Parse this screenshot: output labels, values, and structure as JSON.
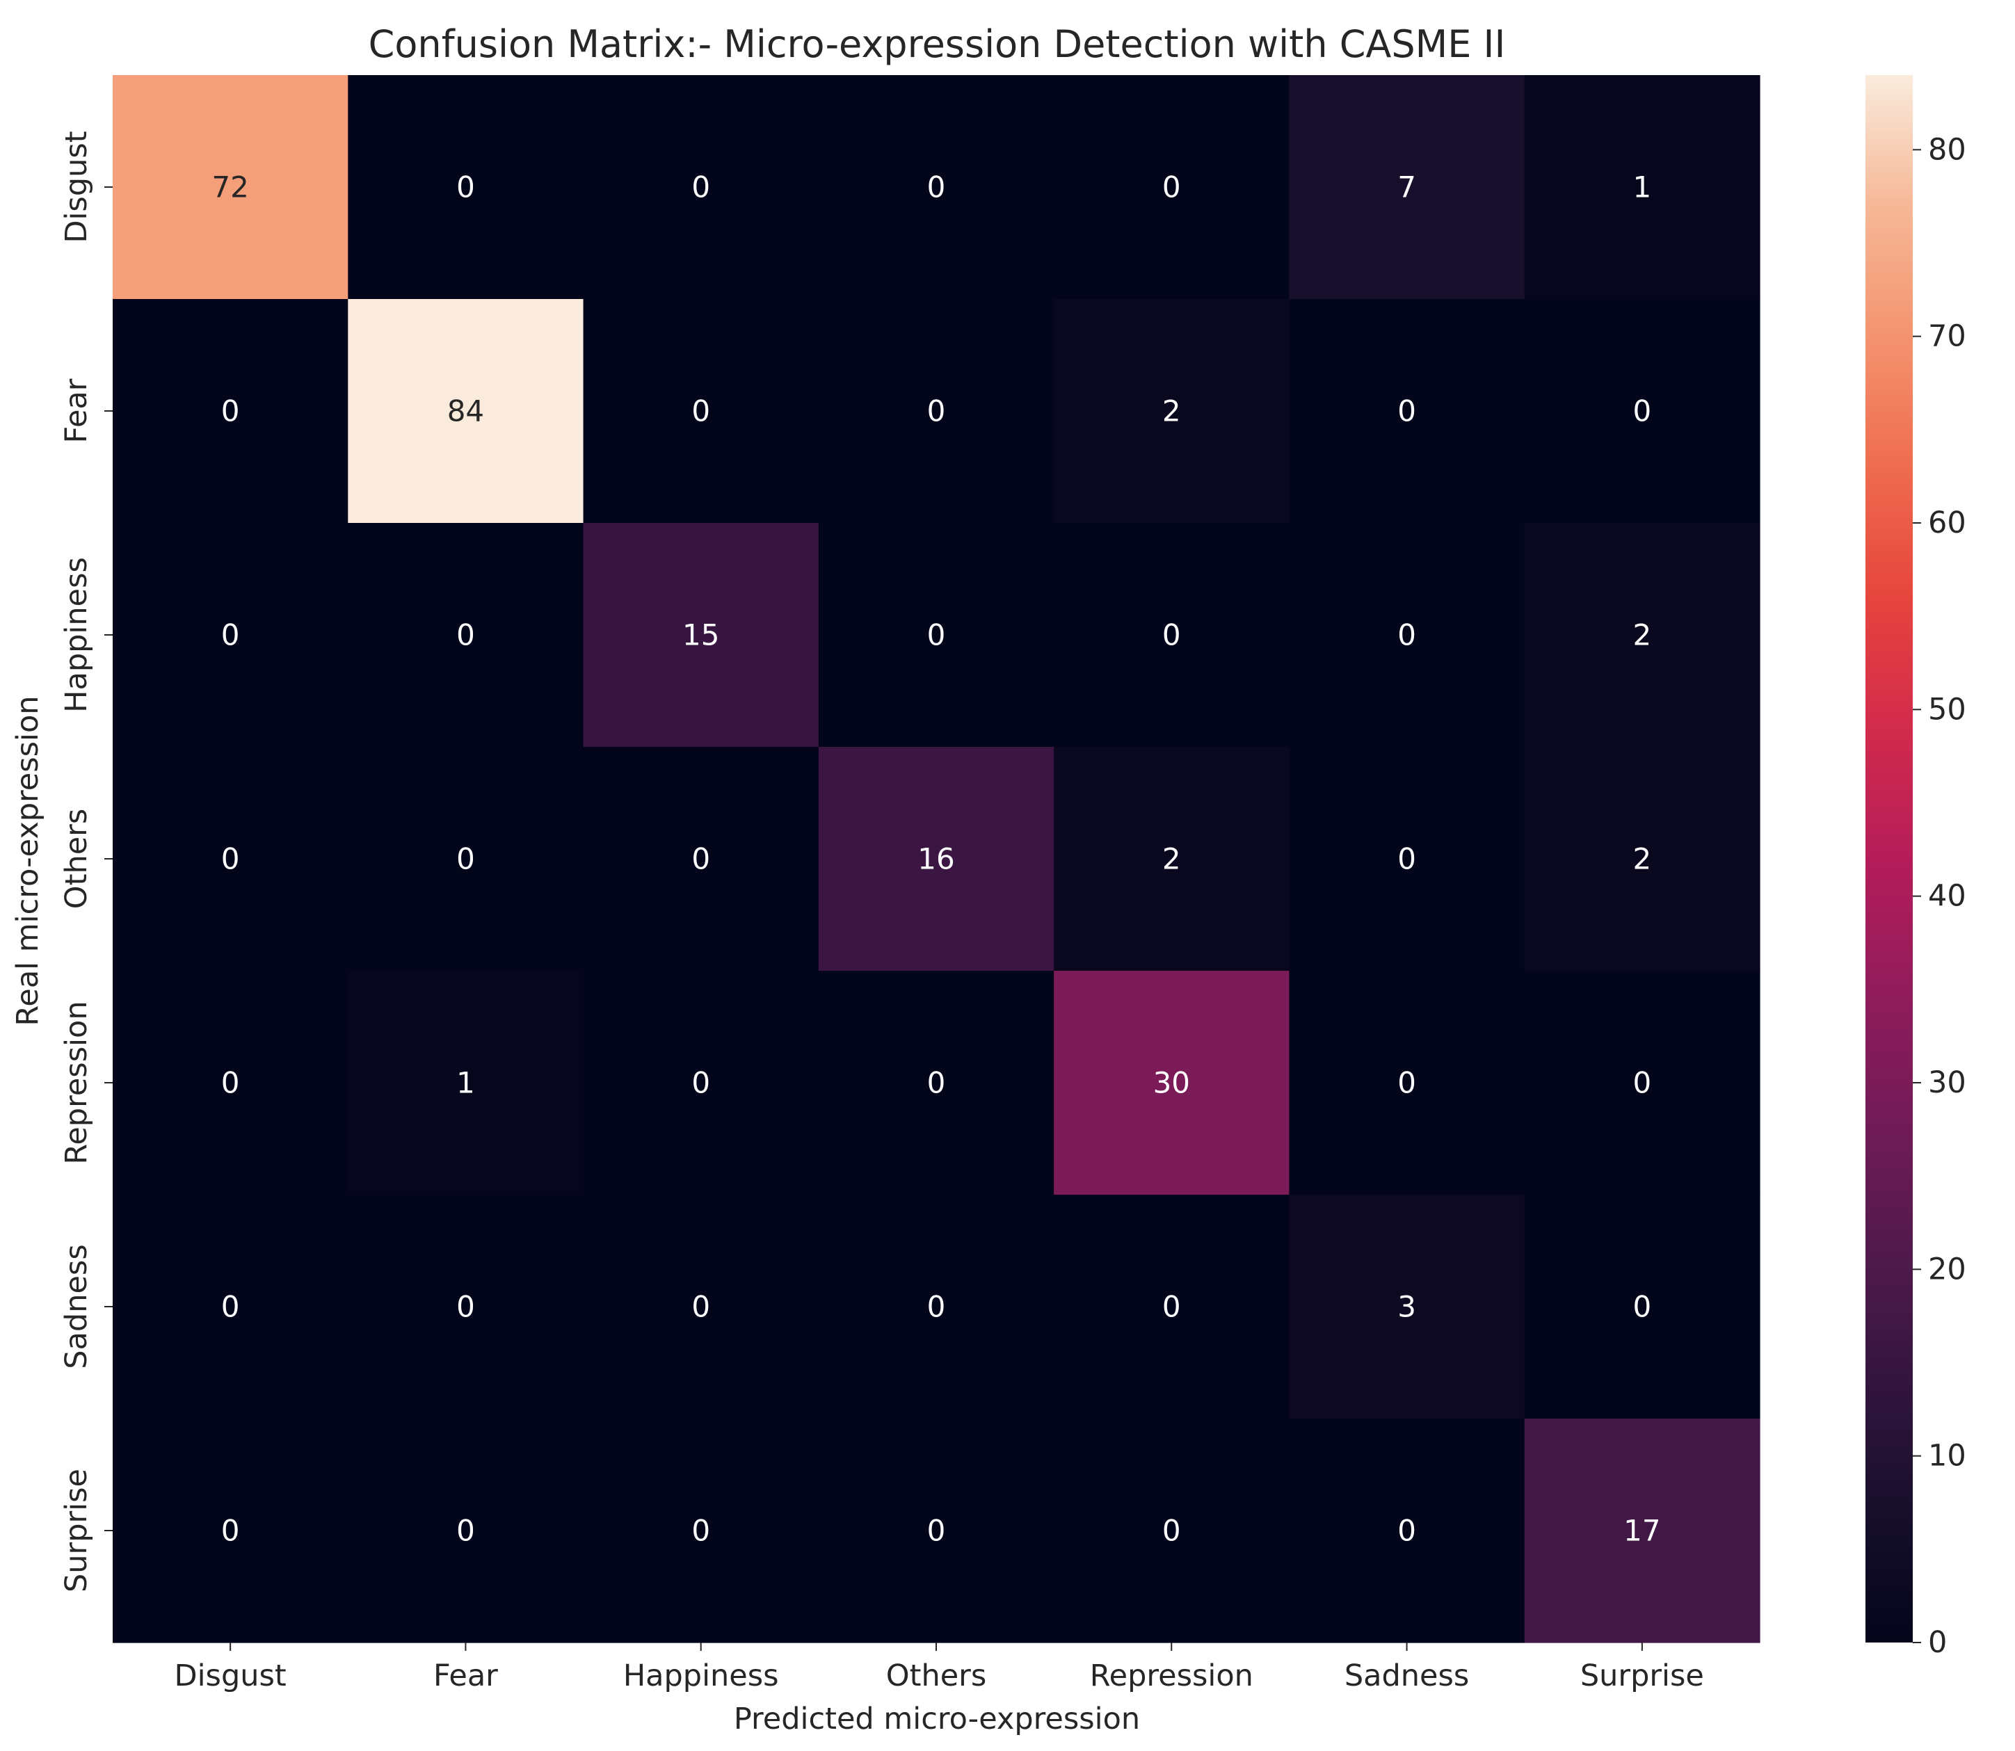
{
  "chart_data": {
    "type": "heatmap",
    "title": "Confusion Matrix:- Micro-expression Detection with CASME II",
    "xlabel": "Predicted micro-expression",
    "ylabel": "Real micro-expression",
    "x_categories": [
      "Disgust",
      "Fear",
      "Happiness",
      "Others",
      "Repression",
      "Sadness",
      "Surprise"
    ],
    "y_categories": [
      "Disgust",
      "Fear",
      "Happiness",
      "Others",
      "Repression",
      "Sadness",
      "Surprise"
    ],
    "values": [
      [
        72,
        0,
        0,
        0,
        0,
        7,
        1
      ],
      [
        0,
        84,
        0,
        0,
        2,
        0,
        0
      ],
      [
        0,
        0,
        15,
        0,
        0,
        0,
        2
      ],
      [
        0,
        0,
        0,
        16,
        2,
        0,
        2
      ],
      [
        0,
        1,
        0,
        0,
        30,
        0,
        0
      ],
      [
        0,
        0,
        0,
        0,
        0,
        3,
        0
      ],
      [
        0,
        0,
        0,
        0,
        0,
        0,
        17
      ]
    ],
    "colorbar": {
      "colormap": "rocket",
      "vmin": 0,
      "vmax": 84,
      "ticks": [
        0,
        10,
        20,
        30,
        40,
        50,
        60,
        70,
        80
      ]
    },
    "annotations": true,
    "grid": false,
    "legend": "colorbar right"
  }
}
